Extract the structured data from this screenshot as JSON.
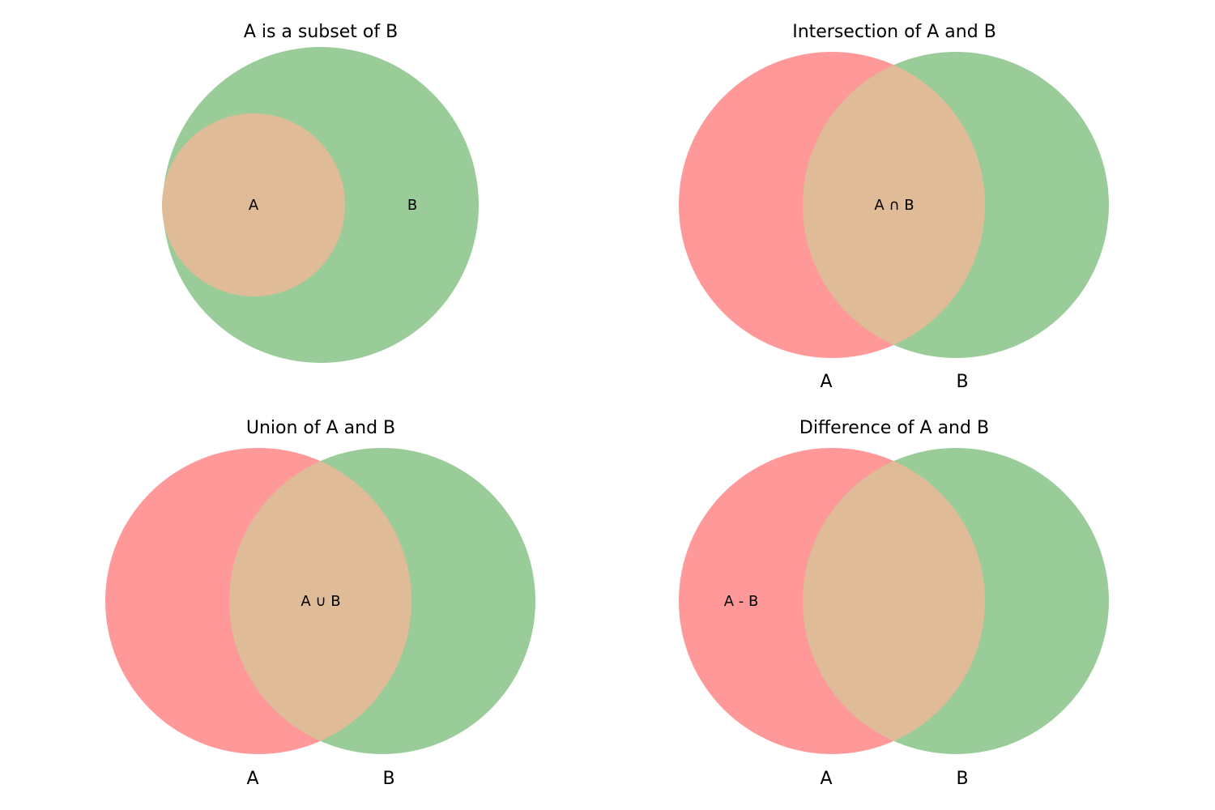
{
  "colors": {
    "set_a": "#ff9999",
    "set_b": "#99cc99",
    "overlap": "#dfbb98",
    "text": "#000000",
    "background": "#ffffff"
  },
  "panels": {
    "subset": {
      "title": "A is a subset of B",
      "label_a": "A",
      "label_b": "B"
    },
    "intersection": {
      "title": "Intersection of A and B",
      "region_label": "A ∩ B",
      "set_label_a": "A",
      "set_label_b": "B"
    },
    "union": {
      "title": "Union of A and B",
      "region_label": "A ∪ B",
      "set_label_a": "A",
      "set_label_b": "B"
    },
    "difference": {
      "title": "Difference of A and B",
      "region_label": "A - B",
      "set_label_a": "A",
      "set_label_b": "B"
    }
  }
}
